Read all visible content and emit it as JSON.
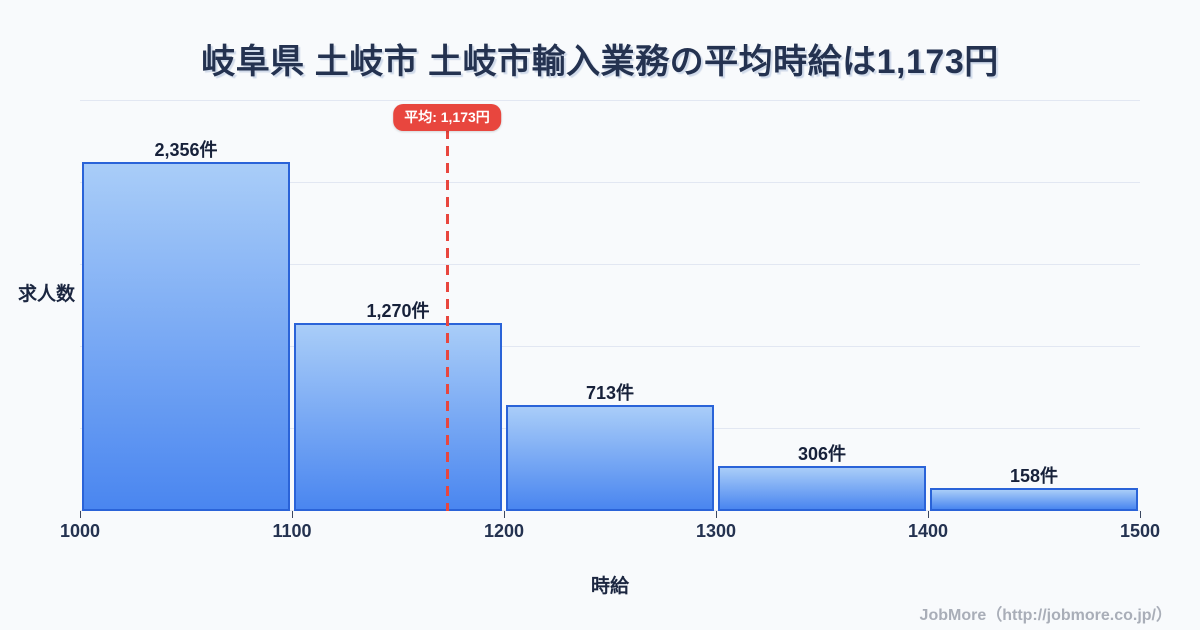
{
  "title": "岐阜県 土岐市 土岐市輸入業務の平均時給は1,173円",
  "chart_data": {
    "type": "bar",
    "title": "岐阜県 土岐市 土岐市輸入業務の平均時給は1,173円",
    "xlabel": "時給",
    "ylabel": "求人数",
    "bin_edges": [
      1000,
      1100,
      1200,
      1300,
      1400,
      1500
    ],
    "x_tick_labels": [
      "1000",
      "1100",
      "1200",
      "1300",
      "1400",
      "1500"
    ],
    "values": [
      2356,
      1270,
      713,
      306,
      158
    ],
    "bar_labels": [
      "2,356件",
      "1,270件",
      "713件",
      "306件",
      "158件"
    ],
    "unit": "件",
    "xlim": [
      1000,
      1500
    ],
    "ylim": [
      0,
      2770
    ],
    "grid": "horizontal",
    "gridline_count": 6,
    "average": {
      "value": 1173,
      "label": "平均: 1,173円"
    },
    "colors": {
      "bar_fill_top": "#a9cdf8",
      "bar_fill_bottom": "#4a86f0",
      "bar_border": "#2a63d8",
      "average_accent": "#e8463e",
      "text_dark": "#243250",
      "grid": "#e2e7f2",
      "background": "#f8fafc",
      "footer_gray": "#a9aeb8"
    }
  },
  "footer": {
    "credit": "JobMore（http://jobmore.co.jp/）"
  }
}
